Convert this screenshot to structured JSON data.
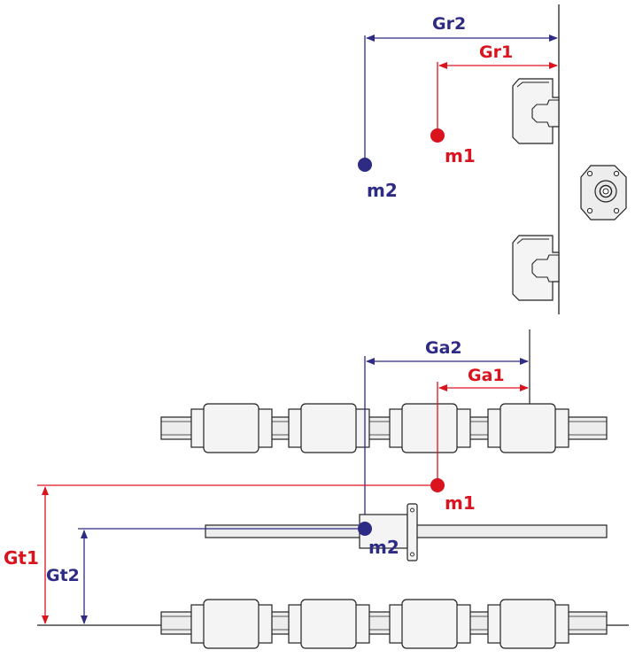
{
  "colors": {
    "red": "#d9141e",
    "blue": "#2e2b85",
    "line": "#222222"
  },
  "top_view": {
    "gr2_label": "Gr2",
    "gr1_label": "Gr1",
    "m1_label": "m1",
    "m2_label": "m2"
  },
  "bottom_view": {
    "ga2_label": "Ga2",
    "ga1_label": "Ga1",
    "m1_label": "m1",
    "m2_label": "m2",
    "gt1_label": "Gt1",
    "gt2_label": "Gt2"
  }
}
